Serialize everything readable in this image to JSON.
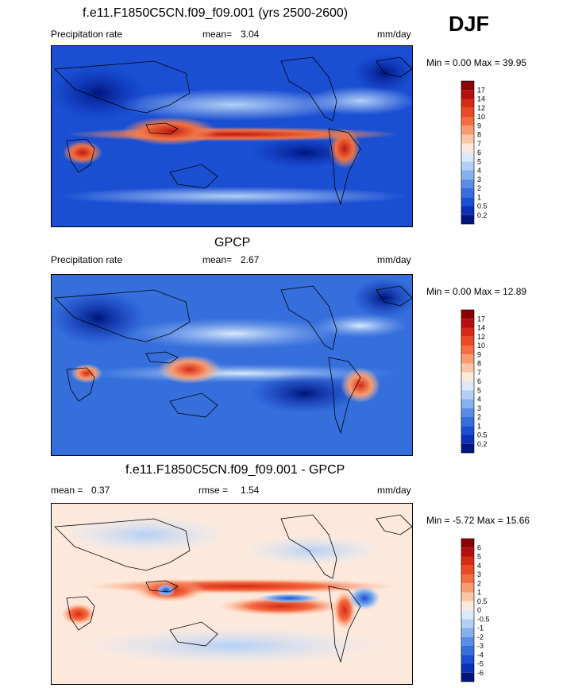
{
  "season": "DJF",
  "panels": [
    {
      "title": "f.e11.F1850C5CN.f09_f09.001 (yrs 2500-2600)",
      "left_label": "Precipitation rate",
      "mid_label": "mean=",
      "mid_value": "3.04",
      "units": "mm/day",
      "minmax": "Min =   0.00 Max =   39.95",
      "colorbar_labels": [
        "17",
        "14",
        "12",
        "10",
        "9",
        "8",
        "7",
        "6",
        "5",
        "4",
        "3",
        "2",
        "1",
        "0.5",
        "0.2"
      ],
      "colorbar_colors": [
        "#8b0000",
        "#b40f0f",
        "#d62a12",
        "#ea4b22",
        "#f46d43",
        "#f99a6f",
        "#fcc5a5",
        "#fde9db",
        "#dce9fb",
        "#b2cff6",
        "#86b1ef",
        "#5a8ee6",
        "#356fdc",
        "#1a4fd2",
        "#0a30b5",
        "#00157e"
      ]
    },
    {
      "title": "GPCP",
      "left_label": "Precipitation rate",
      "mid_label": "mean=",
      "mid_value": "2.67",
      "units": "mm/day",
      "minmax": "Min =   0.00 Max =   12.89",
      "colorbar_labels": [
        "17",
        "14",
        "12",
        "10",
        "9",
        "8",
        "7",
        "6",
        "5",
        "4",
        "3",
        "2",
        "1",
        "0.5",
        "0.2"
      ],
      "colorbar_colors": [
        "#8b0000",
        "#b40f0f",
        "#d62a12",
        "#ea4b22",
        "#f46d43",
        "#f99a6f",
        "#fcc5a5",
        "#fde9db",
        "#dce9fb",
        "#b2cff6",
        "#86b1ef",
        "#5a8ee6",
        "#356fdc",
        "#1a4fd2",
        "#0a30b5",
        "#00157e"
      ]
    },
    {
      "title": "f.e11.F1850C5CN.f09_f09.001 - GPCP",
      "left_label": "mean =",
      "left_value": "0.37",
      "mid_label": "rmse =",
      "mid_value": "1.54",
      "units": "mm/day",
      "minmax": "Min =  -5.72 Max =   15.66",
      "colorbar_labels": [
        "6",
        "5",
        "4",
        "3",
        "2",
        "1",
        "0.5",
        "0",
        "-0.5",
        "-1",
        "-2",
        "-3",
        "-4",
        "-5",
        "-6"
      ],
      "colorbar_colors": [
        "#8b0000",
        "#b40f0f",
        "#d62a12",
        "#ea4b22",
        "#f46d43",
        "#f99a6f",
        "#fcc5a5",
        "#fde9db",
        "#dce9fb",
        "#b2cff6",
        "#86b1ef",
        "#5a8ee6",
        "#356fdc",
        "#1a4fd2",
        "#0a30b5",
        "#00157e"
      ]
    }
  ]
}
